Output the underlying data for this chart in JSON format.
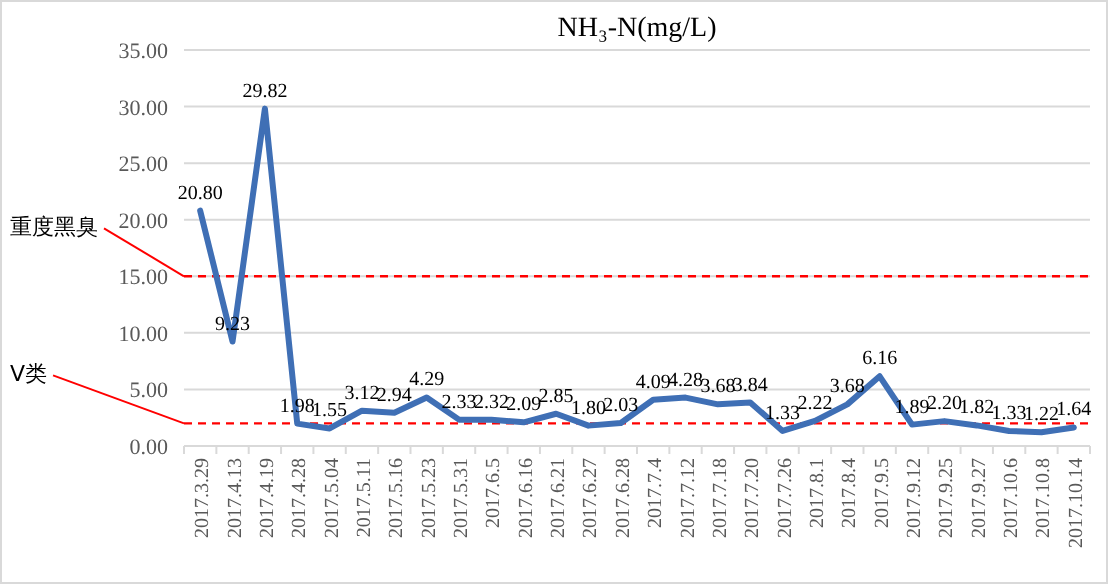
{
  "chart_data": {
    "type": "line",
    "title": "NH₃-N(mg/L)",
    "categories": [
      "2017.3.29",
      "2017.4.13",
      "2017.4.19",
      "2017.4.28",
      "2017.5.04",
      "2017.5.11",
      "2017.5.16",
      "2017.5.23",
      "2017.5.31",
      "2017.6.5",
      "2017.6.16",
      "2017.6.21",
      "2017.6.27",
      "2017.6.28",
      "2017.7.4",
      "2017.7.12",
      "2017.7.18",
      "2017.7.20",
      "2017.7.26",
      "2017.8.1",
      "2017.8.4",
      "2017.9.5",
      "2017.9.12",
      "2017.9.25",
      "2017.9.27",
      "2017.10.6",
      "2017.10.8",
      "2017.10.14"
    ],
    "series": [
      {
        "color": "#3f6fb5",
        "values": [
          20.8,
          9.23,
          29.82,
          1.98,
          1.55,
          3.12,
          2.94,
          4.29,
          2.33,
          2.32,
          2.09,
          2.85,
          1.8,
          2.03,
          4.09,
          4.28,
          3.68,
          3.84,
          1.33,
          2.22,
          3.68,
          6.16,
          1.89,
          2.2,
          1.82,
          1.33,
          1.22,
          1.64
        ],
        "value_labels": [
          "20.80",
          "9.23",
          "29.82",
          "1.98",
          "1.55",
          "3.12",
          "2.94",
          "4.29",
          "2.33",
          "2.32",
          "2.09",
          "2.85",
          "1.80",
          "2.03",
          "4.09",
          "4.28",
          "3.68",
          "3.84",
          "1.33",
          "2.22",
          "3.68",
          "6.16",
          "1.89",
          "2.20",
          "1.82",
          "1.33",
          "1.22",
          "1.64"
        ]
      }
    ],
    "ylim": [
      0,
      35
    ],
    "yticks": [
      {
        "value": 0,
        "label": "0.00"
      },
      {
        "value": 5,
        "label": "5.00"
      },
      {
        "value": 10,
        "label": "10.00"
      },
      {
        "value": 15,
        "label": "15.00"
      },
      {
        "value": 20,
        "label": "20.00"
      },
      {
        "value": 25,
        "label": "25.00"
      },
      {
        "value": 30,
        "label": "30.00"
      },
      {
        "value": 35,
        "label": "35.00"
      }
    ],
    "grid": "y",
    "marker": "none",
    "line_style": "solid",
    "ref_lines": [
      {
        "axis": "y",
        "value": 15,
        "label": "重度黑臭",
        "color": "#ff0000",
        "line_style": "dashed"
      },
      {
        "axis": "y",
        "value": 2,
        "label": "V类",
        "color": "#ff0000",
        "line_style": "dashed"
      }
    ]
  }
}
